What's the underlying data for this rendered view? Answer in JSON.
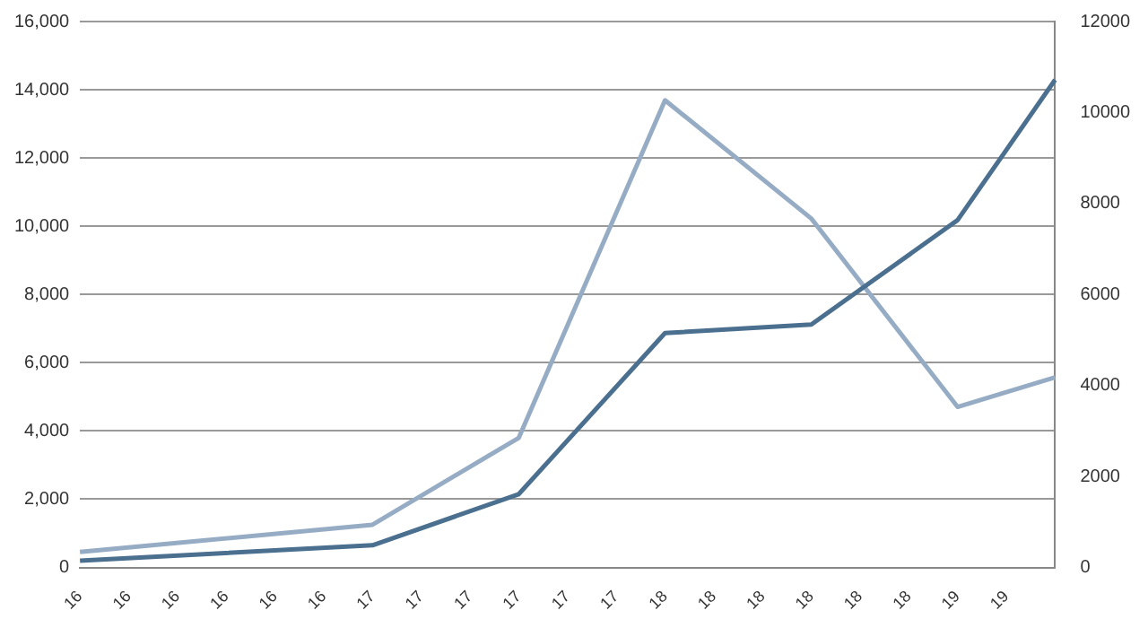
{
  "chart_data": {
    "type": "line",
    "categories": [
      "16",
      "16",
      "16",
      "16",
      "16",
      "16",
      "17",
      "17",
      "17",
      "17",
      "17",
      "17",
      "18",
      "18",
      "18",
      "18",
      "18",
      "18",
      "19",
      "19",
      null
    ],
    "series": [
      {
        "color": "#4a6f8f",
        "values": [
          200,
          null,
          null,
          null,
          null,
          null,
          650,
          null,
          null,
          2150,
          null,
          null,
          6870,
          null,
          null,
          7120,
          null,
          null,
          10180,
          null,
          14290
        ]
      },
      {
        "color": "#95acc4",
        "axis": "y2",
        "values": [
          340,
          null,
          null,
          null,
          null,
          null,
          940,
          null,
          null,
          2850,
          null,
          null,
          10270,
          null,
          null,
          7670,
          null,
          null,
          3530,
          null,
          4180
        ]
      }
    ],
    "ylim": [
      0,
      16000
    ],
    "yticks": [
      {
        "value": 0,
        "label": "0"
      },
      {
        "value": 2000,
        "label": "2,000"
      },
      {
        "value": 4000,
        "label": "4,000"
      },
      {
        "value": 6000,
        "label": "6,000"
      },
      {
        "value": 8000,
        "label": "8,000"
      },
      {
        "value": 10000,
        "label": "10,000"
      },
      {
        "value": 12000,
        "label": "12,000"
      },
      {
        "value": 14000,
        "label": "14,000"
      },
      {
        "value": 16000,
        "label": "16,000"
      }
    ],
    "y2lim": [
      0,
      12000
    ],
    "y2ticks": [
      0,
      2000,
      4000,
      6000,
      8000,
      10000,
      12000
    ],
    "grid": "y",
    "legend": false,
    "marker": "none",
    "line_style": "solid"
  }
}
